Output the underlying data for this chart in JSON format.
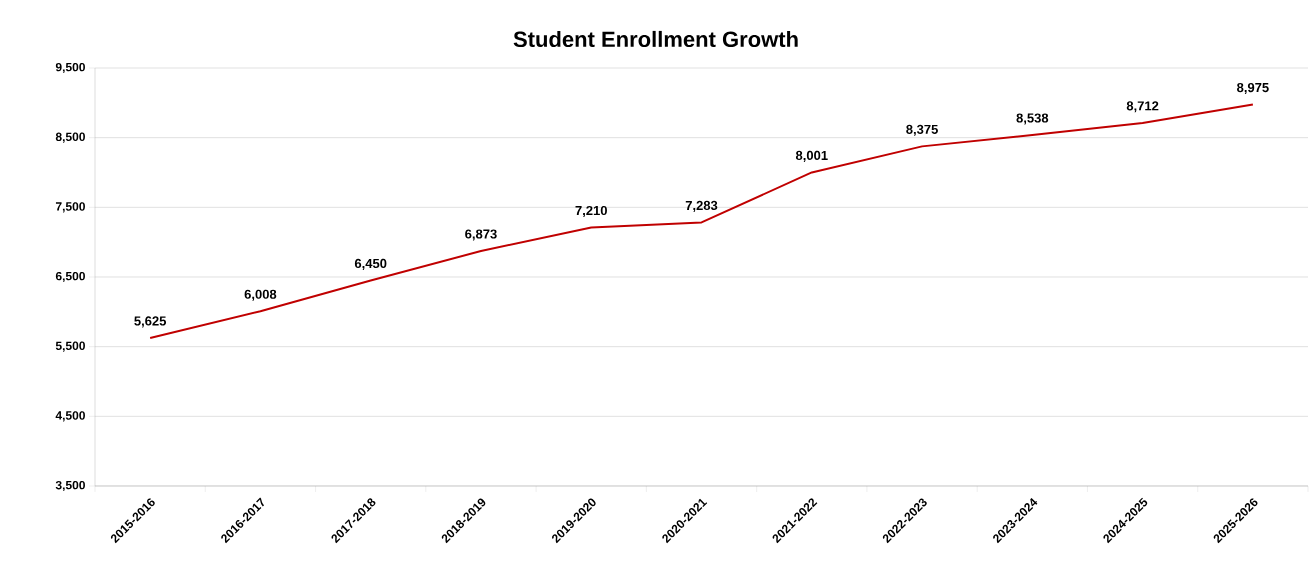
{
  "chart_data": {
    "type": "line",
    "title": "Student Enrollment Growth",
    "categories": [
      "2015-2016",
      "2016-2017",
      "2017-2018",
      "2018-2019",
      "2019-2020",
      "2020-2021",
      "2021-2022",
      "2022-2023",
      "2023-2024",
      "2024-2025",
      "2025-2026"
    ],
    "series": [
      {
        "color": "#c00000",
        "values": [
          5625,
          6008,
          6450,
          6873,
          7210,
          7283,
          8001,
          8375,
          8538,
          8712,
          8975
        ],
        "value_labels": [
          "5,625",
          "6,008",
          "6,450",
          "6,873",
          "7,210",
          "7,283",
          "8,001",
          "8,375",
          "8,538",
          "8,712",
          "8,975"
        ]
      }
    ],
    "ylim": [
      3500,
      9500
    ],
    "yticks": [
      {
        "value": 3500,
        "label": "3,500"
      },
      {
        "value": 4500,
        "label": "4,500"
      },
      {
        "value": 5500,
        "label": "5,500"
      },
      {
        "value": 6500,
        "label": "6,500"
      },
      {
        "value": 7500,
        "label": "7,500"
      },
      {
        "value": 8500,
        "label": "8,500"
      },
      {
        "value": 9500,
        "label": "9,500"
      }
    ],
    "grid": "y",
    "marker": "none",
    "line_style": "solid"
  }
}
